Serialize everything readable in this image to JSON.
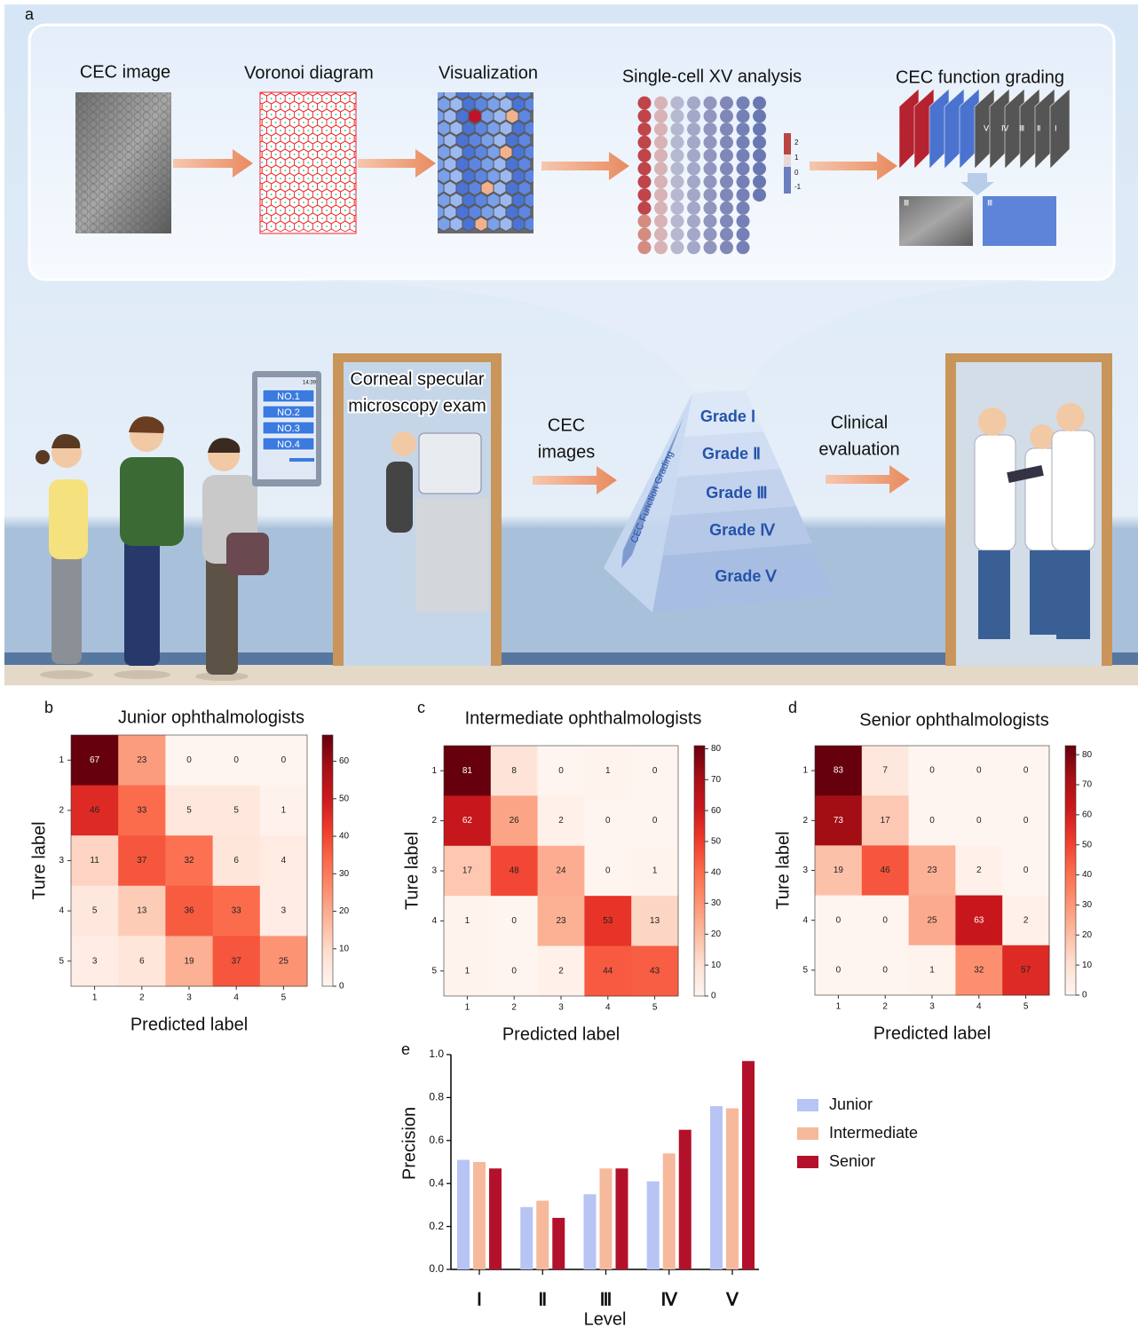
{
  "panel_a": {
    "label": "a",
    "steps": [
      "CEC image",
      "Voronoi diagram",
      "Visualization",
      "Single-cell XV analysis",
      "CEC function grading"
    ],
    "colorbar_labels": [
      "2",
      "1",
      "0",
      "-1"
    ],
    "stack_labels": [
      "Ⅴ",
      "Ⅳ",
      "Ⅲ",
      "Ⅱ",
      "Ⅰ"
    ],
    "thumbnail_labels": [
      "Ⅲ",
      "Ⅲ"
    ],
    "clock": "14:39",
    "queue": [
      "NO.1",
      "NO.2",
      "NO.3",
      "NO.4"
    ],
    "exam_lines": [
      "Corneal specular",
      "microscopy exam"
    ],
    "arrow1_lines": [
      "CEC",
      "images"
    ],
    "pyramid_arrow": "CEC Function Grading",
    "grades": [
      "Grade Ⅰ",
      "Grade Ⅱ",
      "Grade Ⅲ",
      "Grade Ⅳ",
      "Grade Ⅴ"
    ],
    "arrow2_lines": [
      "Clinical",
      "evaluation"
    ]
  },
  "chart_data": [
    {
      "type": "heatmap",
      "label": "b",
      "title": "Junior ophthalmologists",
      "x_label": "Predicted label",
      "y_label": "Ture label",
      "categories": [
        1,
        2,
        3,
        4,
        5
      ],
      "colormap": "Reds",
      "matrix": [
        [
          67,
          23,
          0,
          0,
          0
        ],
        [
          46,
          33,
          5,
          5,
          1
        ],
        [
          11,
          37,
          32,
          6,
          4
        ],
        [
          5,
          13,
          36,
          33,
          3
        ],
        [
          3,
          6,
          19,
          37,
          25
        ]
      ],
      "clim": [
        0,
        67
      ],
      "cticks": [
        0,
        10,
        20,
        30,
        40,
        50,
        60
      ]
    },
    {
      "type": "heatmap",
      "label": "c",
      "title": "Intermediate ophthalmologists",
      "x_label": "Predicted label",
      "y_label": "Ture label",
      "categories": [
        1,
        2,
        3,
        4,
        5
      ],
      "colormap": "Reds",
      "matrix": [
        [
          81,
          8,
          0,
          1,
          0
        ],
        [
          62,
          26,
          2,
          0,
          0
        ],
        [
          17,
          48,
          24,
          0,
          1
        ],
        [
          1,
          0,
          23,
          53,
          13
        ],
        [
          1,
          0,
          2,
          44,
          43
        ]
      ],
      "clim": [
        0,
        81
      ],
      "cticks": [
        0,
        10,
        20,
        30,
        40,
        50,
        60,
        70,
        80
      ]
    },
    {
      "type": "heatmap",
      "label": "d",
      "title": "Senior ophthalmologists",
      "x_label": "Predicted label",
      "y_label": "Ture label",
      "categories": [
        1,
        2,
        3,
        4,
        5
      ],
      "colormap": "Reds",
      "matrix": [
        [
          83,
          7,
          0,
          0,
          0
        ],
        [
          73,
          17,
          0,
          0,
          0
        ],
        [
          19,
          46,
          23,
          2,
          0
        ],
        [
          0,
          0,
          25,
          63,
          2
        ],
        [
          0,
          0,
          1,
          32,
          57
        ]
      ],
      "clim": [
        0,
        83
      ],
      "cticks": [
        0,
        10,
        20,
        30,
        40,
        50,
        60,
        70,
        80
      ]
    },
    {
      "type": "bar",
      "label": "e",
      "x_label": "Level",
      "y_label": "Precision",
      "categories": [
        "Ⅰ",
        "Ⅱ",
        "Ⅲ",
        "Ⅳ",
        "Ⅴ"
      ],
      "series": [
        {
          "name": "Junior",
          "color": "#b7c4f4",
          "values": [
            0.51,
            0.29,
            0.35,
            0.41,
            0.76
          ]
        },
        {
          "name": "Intermediate",
          "color": "#f6b99c",
          "values": [
            0.5,
            0.32,
            0.47,
            0.54,
            0.75
          ]
        },
        {
          "name": "Senior",
          "color": "#b3112b",
          "values": [
            0.47,
            0.24,
            0.47,
            0.65,
            0.97
          ]
        }
      ],
      "ylim": [
        0,
        1
      ],
      "yticks": [
        {
          "value": 0,
          "label": "0.0"
        },
        {
          "value": 0.2,
          "label": "0.2"
        },
        {
          "value": 0.4,
          "label": "0.4"
        },
        {
          "value": 0.6,
          "label": "0.6"
        },
        {
          "value": 0.8,
          "label": "0.8"
        },
        {
          "value": 1,
          "label": "1.0"
        }
      ],
      "legend": "right"
    }
  ]
}
